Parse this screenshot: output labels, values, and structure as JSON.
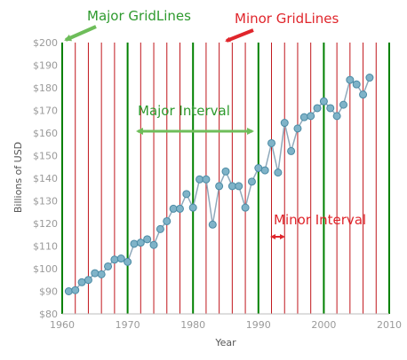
{
  "chart_data": {
    "type": "line",
    "xlabel": "Year",
    "ylabel": "Billions of USD",
    "xlim": [
      1960,
      2010
    ],
    "ylim": [
      80,
      200
    ],
    "x_ticks": [
      "1960",
      "1970",
      "1980",
      "1990",
      "2000",
      "2010"
    ],
    "y_ticks": [
      "$80",
      "$90",
      "$100",
      "$110",
      "$120",
      "$130",
      "$140",
      "$150",
      "$160",
      "$170",
      "$180",
      "$190",
      "$200"
    ],
    "major_interval": 10,
    "minor_interval": 2,
    "series": [
      {
        "x": [
          1961,
          1962,
          1963,
          1964,
          1965,
          1966,
          1967,
          1968,
          1969,
          1970,
          1971,
          1972,
          1973,
          1974,
          1975,
          1976,
          1977,
          1978,
          1979,
          1980,
          1981,
          1982,
          1983,
          1984,
          1985,
          1986,
          1987,
          1988,
          1989,
          1990,
          1991,
          1992,
          1993,
          1994,
          1995,
          1996,
          1997,
          1998,
          1999,
          2000,
          2001,
          2002,
          2003,
          2004,
          2005,
          2006,
          2007
        ],
        "values": [
          90,
          90.5,
          94,
          95,
          98,
          97.5,
          101,
          104,
          104.5,
          103,
          111,
          111.5,
          113,
          110.5,
          117.5,
          121,
          126.5,
          126.5,
          133,
          127,
          139.5,
          139.5,
          119.5,
          136.5,
          143,
          136.5,
          136.5,
          127,
          138.5,
          144.5,
          143.5,
          155.5,
          142.5,
          164.5,
          152,
          162,
          167,
          167.5,
          171,
          174,
          171,
          167.5,
          172.5,
          183.5,
          181.5,
          177,
          184.5
        ]
      }
    ],
    "annotations": [
      {
        "label": "Major GridLines",
        "color": "#2e9a2e"
      },
      {
        "label": "Minor GridLines",
        "color": "#e0262c"
      },
      {
        "label": "Major Interval",
        "color": "#2e9a2e"
      },
      {
        "label": "Minor Interval",
        "color": "#e0262c"
      }
    ],
    "colors": {
      "major_grid": "#008000",
      "minor_grid": "#c0161c",
      "line": "#8fa9bb",
      "marker_fill": "#7fb3c8",
      "marker_stroke": "#4a8aa4"
    }
  }
}
